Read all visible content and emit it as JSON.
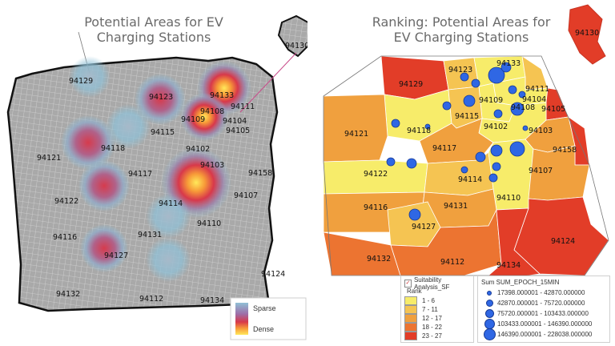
{
  "left": {
    "title_line1": "Potential Areas for EV",
    "title_line2": "Charging Stations",
    "zips": {
      "z94130": "94130",
      "z94129": "94129",
      "z94123": "94123",
      "z94133": "94133",
      "z94111": "94111",
      "z94109": "94109",
      "z94108": "94108",
      "z94104": "94104",
      "z94115": "94115",
      "z94105": "94105",
      "z94118": "94118",
      "z94121": "94121",
      "z94102": "94102",
      "z94103": "94103",
      "z94117": "94117",
      "z94158": "94158",
      "z94122": "94122",
      "z94114": "94114",
      "z94107": "94107",
      "z94110": "94110",
      "z94116": "94116",
      "z94131": "94131",
      "z94127": "94127",
      "z94124": "94124",
      "z94132": "94132",
      "z94112": "94112",
      "z94134": "94134"
    },
    "legend": {
      "sparse": "Sparse",
      "dense": "Dense"
    }
  },
  "right": {
    "title_line1": "Ranking: Potential Areas for",
    "title_line2": "EV Charging Stations",
    "zips": {
      "z94130": "94130",
      "z94129": "94129",
      "z94123": "94123",
      "z94133": "94133",
      "z94111": "94111",
      "z94109": "94109",
      "z94104": "94104",
      "z94108": "94108",
      "z94115": "94115",
      "z94105": "94105",
      "z94118": "94118",
      "z94102": "94102",
      "z94121": "94121",
      "z94103": "94103",
      "z94117": "94117",
      "z94158": "94158",
      "z94107": "94107",
      "z94122": "94122",
      "z94114": "94114",
      "z94110": "94110",
      "z94116": "94116",
      "z94131": "94131",
      "z94127": "94127",
      "z94124": "94124",
      "z94132": "94132",
      "z94112": "94112",
      "z94134": "94134"
    },
    "rank_legend": {
      "layer": "Suitability Analysis_SF",
      "field": "Rank",
      "classes": [
        {
          "label": "1 - 6",
          "color": "#f7ec6a"
        },
        {
          "label": "7 - 11",
          "color": "#f5c452"
        },
        {
          "label": "12 - 17",
          "color": "#f0a03e"
        },
        {
          "label": "18 - 22",
          "color": "#ec7431"
        },
        {
          "label": "23 - 27",
          "color": "#e23d28"
        }
      ]
    },
    "size_legend": {
      "title": "Sum SUM_EPOCH_15MIN",
      "classes": [
        "17398.000001 - 42870.000000",
        "42870.000001 - 75720.000000",
        "75720.000001 - 103433.000000",
        "103433.000001 - 146390.000000",
        "146390.000001 - 228038.000000"
      ]
    }
  }
}
